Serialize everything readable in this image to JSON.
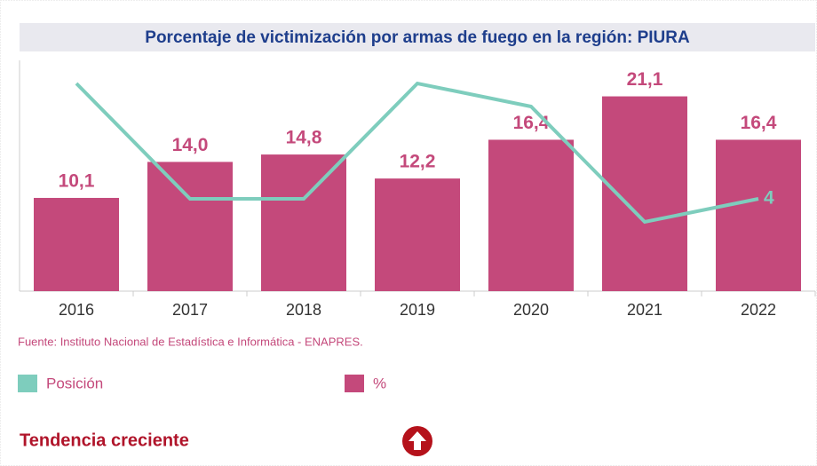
{
  "chart_data": {
    "type": "bar",
    "title": "Porcentaje de victimización por armas de fuego en la región: PIURA",
    "categories": [
      "2016",
      "2017",
      "2018",
      "2019",
      "2020",
      "2021",
      "2022"
    ],
    "series": [
      {
        "name": "%",
        "type": "bar",
        "color": "#c4497b",
        "values": [
          10.1,
          14.0,
          14.8,
          12.2,
          16.4,
          21.1,
          16.4
        ],
        "value_labels": [
          "10,1",
          "14,0",
          "14,8",
          "12,2",
          "16,4",
          "21,1",
          "16,4"
        ]
      },
      {
        "name": "Posición",
        "type": "line",
        "axis": "y2",
        "color": "#7ecdbd",
        "values": [
          9,
          4,
          4,
          9,
          8,
          3,
          4
        ],
        "data_labels": "last"
      }
    ],
    "ylim": [
      0,
      25
    ],
    "y2lim": [
      0,
      10
    ],
    "source": "Fuente: Instituto Nacional de Estadística e Informática - ENAPRES.",
    "trend": "Tendencia creciente"
  }
}
